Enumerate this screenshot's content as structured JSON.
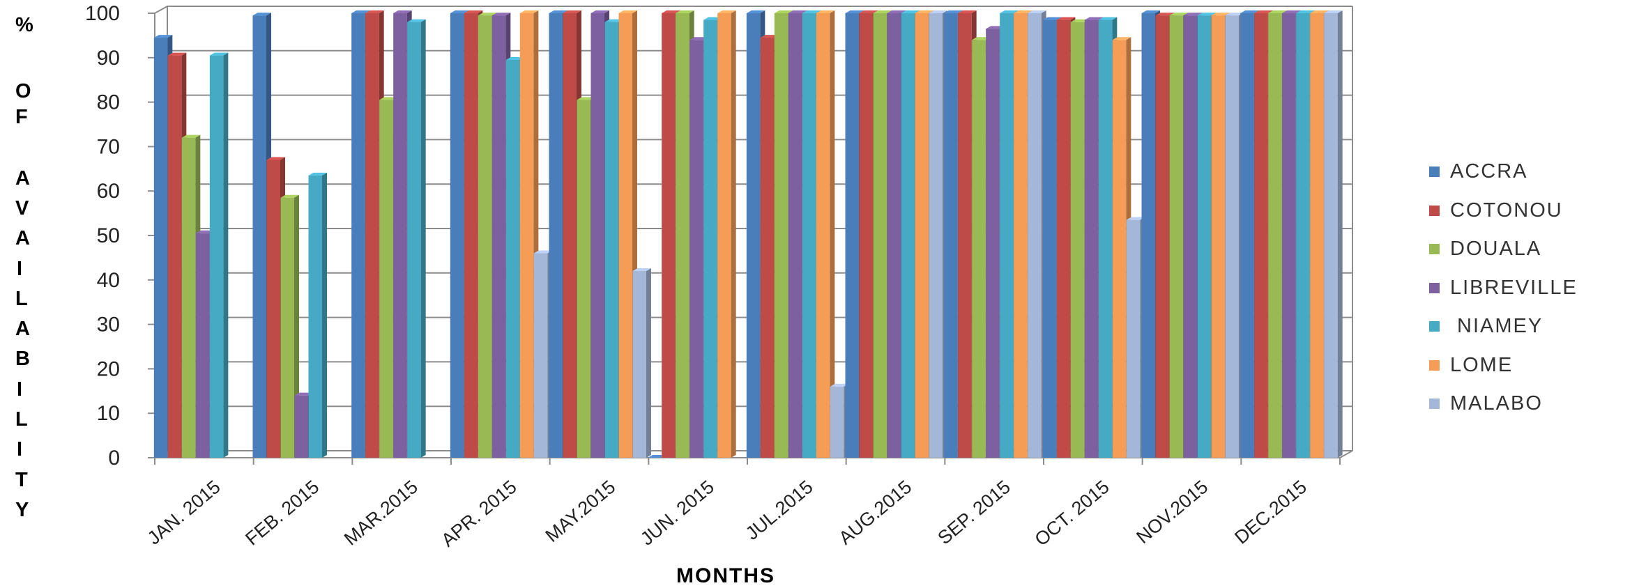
{
  "chart_data": {
    "type": "bar",
    "xlabel": "MONTHS",
    "ylabel_letters": [
      "%",
      "O",
      "F",
      "A",
      "V",
      "A",
      "I",
      "L",
      "A",
      "B",
      "I",
      "L",
      "I",
      "T",
      "Y"
    ],
    "ylim": [
      0,
      100
    ],
    "yticks": [
      0,
      10,
      20,
      30,
      40,
      50,
      60,
      70,
      80,
      90,
      100
    ],
    "grid": true,
    "legend_position": "right",
    "categories": [
      "JAN. 2015",
      "FEB. 2015",
      "MAR.2015",
      "APR. 2015",
      "MAY.2015",
      "JUN. 2015",
      "JUL.2015",
      "AUG.2015",
      "SEP. 2015",
      "OCT. 2015",
      "NOV.2015",
      "DEC.2015"
    ],
    "series": [
      {
        "name": "ACCRA",
        "color": "#4a7ebb",
        "values": [
          94.5,
          99.5,
          100,
          100,
          100,
          0,
          100,
          100,
          100,
          98.5,
          100,
          100
        ]
      },
      {
        "name": "COTONOU",
        "color": "#be4b48",
        "values": [
          90.5,
          67,
          100,
          100,
          100,
          100,
          94.5,
          100,
          100,
          98.5,
          99.5,
          100
        ]
      },
      {
        "name": "DOUALA",
        "color": "#98b954",
        "values": [
          72,
          58.5,
          80.5,
          99.5,
          80.5,
          100,
          100,
          100,
          94,
          98,
          99.5,
          100
        ]
      },
      {
        "name": "LIBREVILLE",
        "color": "#7d60a0",
        "values": [
          50.5,
          14,
          100,
          99.5,
          100,
          94,
          100,
          100,
          96.5,
          98.5,
          99.5,
          100
        ]
      },
      {
        "name": " NIAMEY",
        "color": "#46aac5",
        "values": [
          90.5,
          63.5,
          98,
          89.5,
          98,
          98.5,
          100,
          100,
          100,
          98.5,
          99.5,
          100
        ]
      },
      {
        "name": "LOME",
        "color": "#f59d56",
        "values": [
          null,
          null,
          null,
          100,
          100,
          100,
          100,
          100,
          100,
          94,
          99.5,
          100
        ]
      },
      {
        "name": "MALABO",
        "color": "#a5b7d8",
        "values": [
          null,
          null,
          null,
          46,
          42,
          null,
          16,
          100,
          100,
          53.5,
          99.5,
          100
        ]
      }
    ]
  }
}
